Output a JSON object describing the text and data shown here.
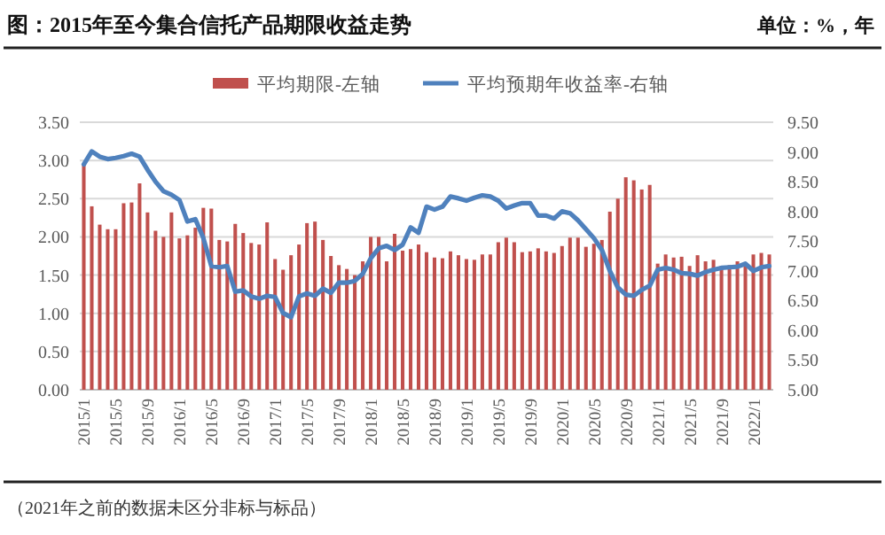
{
  "chart_data": {
    "type": "bar",
    "title": "图：2015年至今集合信托产品期限收益走势",
    "annotations": [
      "单位：%，年",
      "（2021年之前的数据未区分非标与标品）"
    ],
    "categories": [
      "2015/1",
      null,
      null,
      null,
      "2015/5",
      null,
      null,
      null,
      "2015/9",
      null,
      null,
      null,
      "2016/1",
      null,
      null,
      null,
      "2016/5",
      null,
      null,
      null,
      "2016/9",
      null,
      null,
      null,
      "2017/1",
      null,
      null,
      null,
      "2017/5",
      null,
      null,
      null,
      "2017/9",
      null,
      null,
      null,
      "2018/1",
      null,
      null,
      null,
      "2018/5",
      null,
      null,
      null,
      "2018/9",
      null,
      null,
      null,
      "2019/1",
      null,
      null,
      null,
      "2019/5",
      null,
      null,
      null,
      "2019/9",
      null,
      null,
      null,
      "2020/1",
      null,
      null,
      null,
      "2020/5",
      null,
      null,
      null,
      "2020/9",
      null,
      null,
      null,
      "2021/1",
      null,
      null,
      null,
      "2021/5",
      null,
      null,
      null,
      "2021/9",
      null,
      null,
      null,
      "2022/1",
      null,
      null
    ],
    "series": [
      {
        "name": "平均期限-左轴",
        "color": "#c0504d",
        "values": [
          2.95,
          2.4,
          2.16,
          2.1,
          2.1,
          2.44,
          2.45,
          2.7,
          2.32,
          2.08,
          2.0,
          2.32,
          1.98,
          2.02,
          2.12,
          2.38,
          2.37,
          1.96,
          1.94,
          2.17,
          2.05,
          1.92,
          1.9,
          2.19,
          1.71,
          1.57,
          1.76,
          1.9,
          2.18,
          2.2,
          1.96,
          1.75,
          1.63,
          1.58,
          1.5,
          1.68,
          2.0,
          2.0,
          1.68,
          2.04,
          1.82,
          1.84,
          1.9,
          1.8,
          1.73,
          1.72,
          1.81,
          1.76,
          1.71,
          1.7,
          1.77,
          1.77,
          1.93,
          1.99,
          1.93,
          1.8,
          1.81,
          1.85,
          1.81,
          1.79,
          1.88,
          1.99,
          1.99,
          1.87,
          1.91,
          1.96,
          2.33,
          2.5,
          2.78,
          2.74,
          2.62,
          2.68,
          1.65,
          1.77,
          1.73,
          1.74,
          1.62,
          1.76,
          1.68,
          1.7,
          1.62,
          1.63,
          1.68,
          1.65,
          1.77,
          1.79,
          1.77
        ]
      },
      {
        "name": "平均预期年收益率-右轴",
        "type": "line",
        "axis": "y2",
        "color": "#4f81bd",
        "values": [
          8.79,
          9.01,
          8.92,
          8.88,
          8.9,
          8.93,
          8.97,
          8.92,
          8.7,
          8.5,
          8.34,
          8.28,
          8.19,
          7.83,
          7.87,
          7.55,
          7.08,
          7.06,
          7.08,
          6.65,
          6.67,
          6.57,
          6.53,
          6.58,
          6.56,
          6.29,
          6.22,
          6.57,
          6.62,
          6.58,
          6.7,
          6.63,
          6.8,
          6.8,
          6.83,
          6.95,
          7.21,
          7.38,
          7.42,
          7.35,
          7.44,
          7.73,
          7.64,
          8.08,
          8.03,
          8.08,
          8.25,
          8.22,
          8.18,
          8.23,
          8.27,
          8.25,
          8.18,
          8.05,
          8.1,
          8.14,
          8.14,
          7.93,
          7.93,
          7.88,
          8.0,
          7.97,
          7.85,
          7.7,
          7.55,
          7.35,
          7.0,
          6.72,
          6.6,
          6.58,
          6.68,
          6.75,
          7.02,
          7.05,
          7.02,
          6.96,
          6.95,
          6.92,
          6.98,
          7.02,
          7.05,
          7.06,
          7.07,
          7.12,
          7.0,
          7.06,
          7.08
        ]
      }
    ],
    "ylim": [
      0,
      3.5
    ],
    "yticks": [
      {
        "value": 0,
        "label": "0.00"
      },
      {
        "value": 0.5,
        "label": "0.50"
      },
      {
        "value": 1,
        "label": "1.00"
      },
      {
        "value": 1.5,
        "label": "1.50"
      },
      {
        "value": 2,
        "label": "2.00"
      },
      {
        "value": 2.5,
        "label": "2.50"
      },
      {
        "value": 3,
        "label": "3.00"
      },
      {
        "value": 3.5,
        "label": "3.50"
      }
    ],
    "y2lim": [
      5,
      9.5
    ],
    "y2ticks": [
      {
        "value": 5,
        "label": "5.00"
      },
      {
        "value": 5.5,
        "label": "5.50"
      },
      {
        "value": 6,
        "label": "6.00"
      },
      {
        "value": 6.5,
        "label": "6.50"
      },
      {
        "value": 7,
        "label": "7.00"
      },
      {
        "value": 7.5,
        "label": "7.50"
      },
      {
        "value": 8,
        "label": "8.00"
      },
      {
        "value": 8.5,
        "label": "8.50"
      },
      {
        "value": 9,
        "label": "9.00"
      },
      {
        "value": 9.5,
        "label": "9.50"
      }
    ],
    "grid": "y",
    "legend": "top"
  }
}
